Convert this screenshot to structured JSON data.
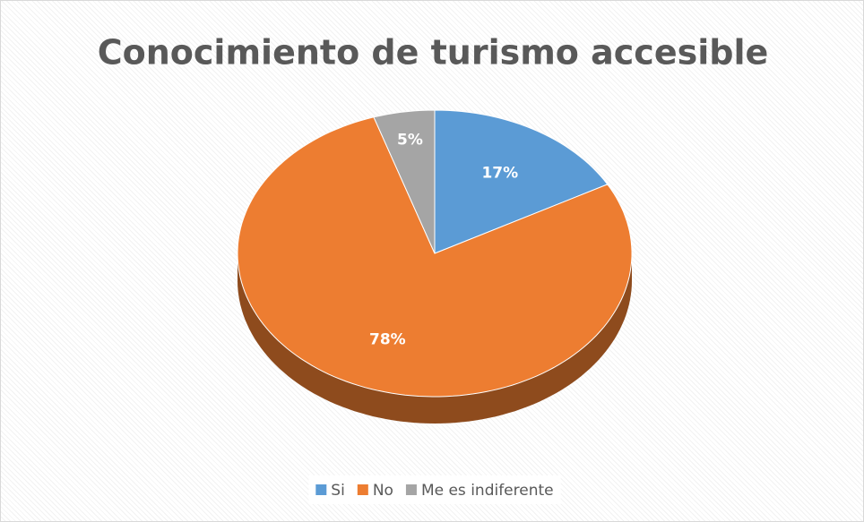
{
  "chart_data": {
    "type": "pie",
    "title": "Conocimiento de turismo accesible",
    "categories": [
      "Si",
      "No",
      "Me es indiferente"
    ],
    "values": [
      17,
      78,
      5
    ],
    "value_labels": [
      "17%",
      "78%",
      "5%"
    ],
    "colors": [
      "#5b9bd5",
      "#ed7d31",
      "#a5a5a5"
    ],
    "legend": "bottom"
  }
}
